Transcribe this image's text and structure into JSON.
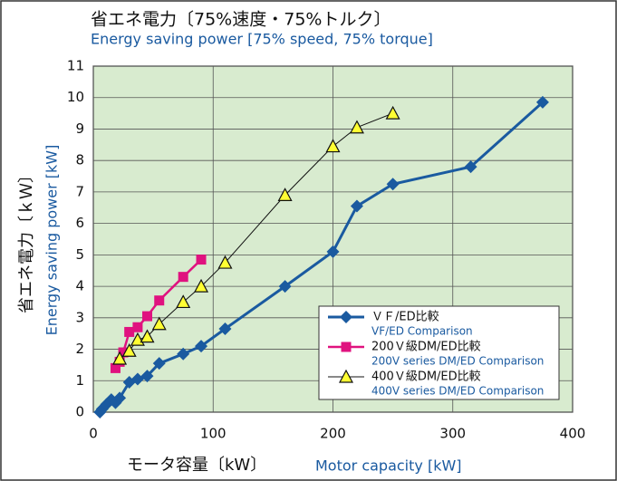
{
  "chart_data": {
    "type": "line",
    "title": "省エネ電力〔75%速度・75%トルク〕",
    "subtitle": "Energy saving power [75% speed, 75% torque]",
    "y_label": "省エネ電力〔ｋＷ〕",
    "y_label_en": "Energy saving power [kW]",
    "x_label": "モータ容量〔kW〕",
    "x_label_en": "Motor capacity [kW]",
    "xlim": [
      0,
      400
    ],
    "xticks": [
      0,
      100,
      200,
      300,
      400
    ],
    "ylim": [
      0,
      11
    ],
    "yticks": [
      0,
      1,
      2,
      3,
      4,
      5,
      6,
      7,
      8,
      9,
      10,
      11
    ],
    "grid": true,
    "legend": "lower right",
    "series": [
      {
        "name": "ＶＦ/ED比較",
        "name_en": "VF/ED Comparison",
        "color": "#1a5aa0",
        "marker": "diamond",
        "x": [
          5.5,
          7.5,
          11,
          15,
          18.5,
          22,
          30,
          37,
          45,
          55,
          75,
          90,
          110,
          160,
          200,
          220,
          250,
          315,
          375
        ],
        "values": [
          0,
          0.1,
          0.25,
          0.4,
          0.3,
          0.45,
          0.95,
          1.05,
          1.15,
          1.55,
          1.85,
          2.1,
          2.65,
          4.0,
          5.1,
          6.55,
          7.25,
          7.8,
          9.85
        ]
      },
      {
        "name": "200Ｖ級DM/ED比較",
        "name_en": "200V series DM/ED Comparison",
        "color": "#e0127f",
        "marker": "square",
        "x": [
          18.5,
          22,
          25,
          30,
          37,
          45,
          55,
          75,
          90
        ],
        "values": [
          1.4,
          1.6,
          1.9,
          2.55,
          2.7,
          3.05,
          3.55,
          4.3,
          4.85
        ]
      },
      {
        "name": "400Ｖ級DM/ED比較",
        "name_en": "400V series DM/ED Comparison",
        "color": "#111111",
        "marker": "triangle",
        "x": [
          22,
          30,
          37,
          45,
          55,
          75,
          90,
          110,
          160,
          200,
          220,
          250
        ],
        "values": [
          1.7,
          1.95,
          2.3,
          2.4,
          2.8,
          3.5,
          4.0,
          4.75,
          6.9,
          8.45,
          9.05,
          9.5
        ]
      }
    ]
  }
}
